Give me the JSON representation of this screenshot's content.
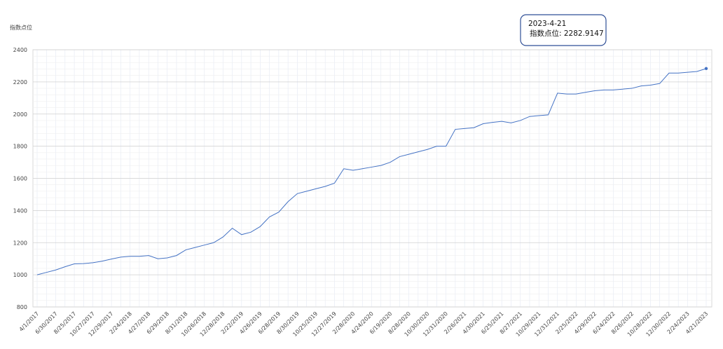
{
  "chart_data": {
    "type": "line",
    "y_label": "指数点位",
    "categories": [
      "4/1/2017",
      null,
      "6/30/2017",
      null,
      "8/25/2017",
      null,
      "10/27/2017",
      null,
      "12/29/2017",
      null,
      "2/24/2018",
      null,
      "4/27/2018",
      null,
      "6/29/2018",
      null,
      "8/31/2018",
      null,
      "10/26/2018",
      null,
      "12/28/2018",
      null,
      "2/22/2019",
      null,
      "4/26/2019",
      null,
      "6/28/2019",
      null,
      "8/30/2019",
      null,
      "10/25/2019",
      null,
      "12/27/2019",
      null,
      "2/28/2020",
      null,
      "4/24/2020",
      null,
      "6/19/2020",
      null,
      "8/28/2020",
      null,
      "10/30/2020",
      null,
      "12/31/2020",
      null,
      "2/26/2021",
      null,
      "4/30/2021",
      null,
      "6/25/2021",
      null,
      "8/27/2021",
      null,
      "10/29/2021",
      null,
      "12/31/2021",
      null,
      "2/25/2022",
      null,
      "4/29/2022",
      null,
      "6/24/2022",
      null,
      "8/26/2022",
      null,
      "10/28/2022",
      null,
      "12/30/2022",
      null,
      "2/24/2023",
      null,
      "4/21/2023"
    ],
    "series": [
      {
        "color": "#4472c4",
        "values": [
          1000,
          1015,
          1030,
          1050,
          1068,
          1070,
          1075,
          1085,
          1098,
          1110,
          1115,
          1115,
          1120,
          1100,
          1105,
          1120,
          1155,
          1170,
          1185,
          1200,
          1235,
          1290,
          1250,
          1265,
          1300,
          1360,
          1390,
          1455,
          1505,
          1520,
          1535,
          1550,
          1570,
          1660,
          1650,
          1660,
          1670,
          1680,
          1700,
          1735,
          1750,
          1765,
          1780,
          1800,
          1800,
          1905,
          1910,
          1915,
          1940,
          1948,
          1955,
          1945,
          1960,
          1985,
          1990,
          1995,
          2130,
          2125,
          2125,
          2135,
          2145,
          2150,
          2150,
          2155,
          2160,
          2175,
          2180,
          2190,
          2255,
          2255,
          2260,
          2265,
          2282.9147
        ]
      }
    ],
    "ylim": [
      800,
      2400
    ],
    "yticks": [
      800,
      1000,
      1200,
      1400,
      1600,
      1800,
      2000,
      2200,
      2400
    ],
    "grid": true,
    "tooltip": {
      "date": "2023-4-21",
      "text": "指数点位: 2282.9147"
    }
  }
}
